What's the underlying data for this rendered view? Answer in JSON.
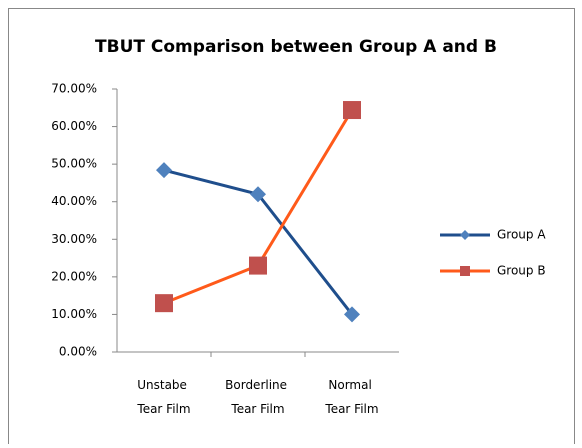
{
  "chart_data": {
    "type": "line",
    "title": "TBUT Comparison between Group A and B",
    "categories": [
      "Unstabe Tear Film",
      "Borderline Tear Film",
      "Normal Tear Film"
    ],
    "series": [
      {
        "name": "Group A",
        "color": "#1f4e8c",
        "marker_color": "#4f81bd",
        "marker": "diamond",
        "values": [
          48.4,
          42,
          10
        ]
      },
      {
        "name": "Group B",
        "color": "#ff5a1a",
        "marker_color": "#c0504d",
        "marker": "square",
        "values": [
          13,
          23,
          64.4
        ]
      }
    ],
    "ylim": [
      0,
      70
    ],
    "yticks": [
      {
        "value": 0,
        "label": "0.00%"
      },
      {
        "value": 10,
        "label": "10.00%"
      },
      {
        "value": 20,
        "label": "20.00%"
      },
      {
        "value": 30,
        "label": "30.00%"
      },
      {
        "value": 40,
        "label": "40.00%"
      },
      {
        "value": 50,
        "label": "50.00%"
      },
      {
        "value": 60,
        "label": "60.00%"
      },
      {
        "value": 70,
        "label": "70.00%"
      }
    ],
    "legend": "right"
  }
}
